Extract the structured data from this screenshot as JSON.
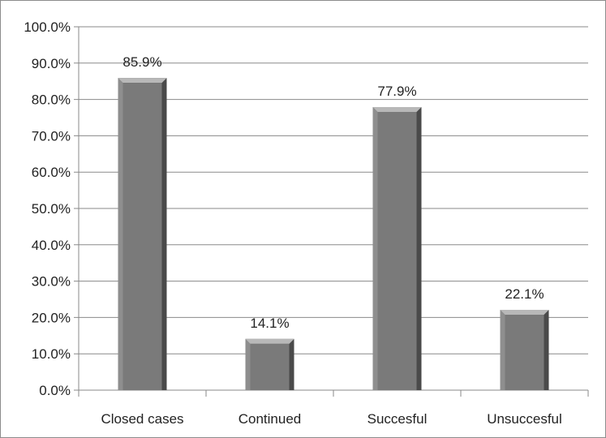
{
  "chart_data": {
    "type": "bar",
    "categories": [
      "Closed cases",
      "Continued",
      "Succesful",
      "Unsuccesful"
    ],
    "values": [
      85.9,
      14.1,
      77.9,
      22.1
    ],
    "data_labels": [
      "85.9%",
      "14.1%",
      "77.9%",
      "22.1%"
    ],
    "y_ticks": [
      "0.0%",
      "10.0%",
      "20.0%",
      "30.0%",
      "40.0%",
      "50.0%",
      "60.0%",
      "70.0%",
      "80.0%",
      "90.0%",
      "100.0%"
    ],
    "ylim": [
      0,
      100
    ],
    "title": "",
    "xlabel": "",
    "ylabel": "",
    "grid": true,
    "legend": "none",
    "colors": {
      "bar_face": "#7a7a7a",
      "bar_dark": "#555555",
      "bar_light": "#b8b8b8",
      "grid": "#8a8a8a"
    }
  }
}
